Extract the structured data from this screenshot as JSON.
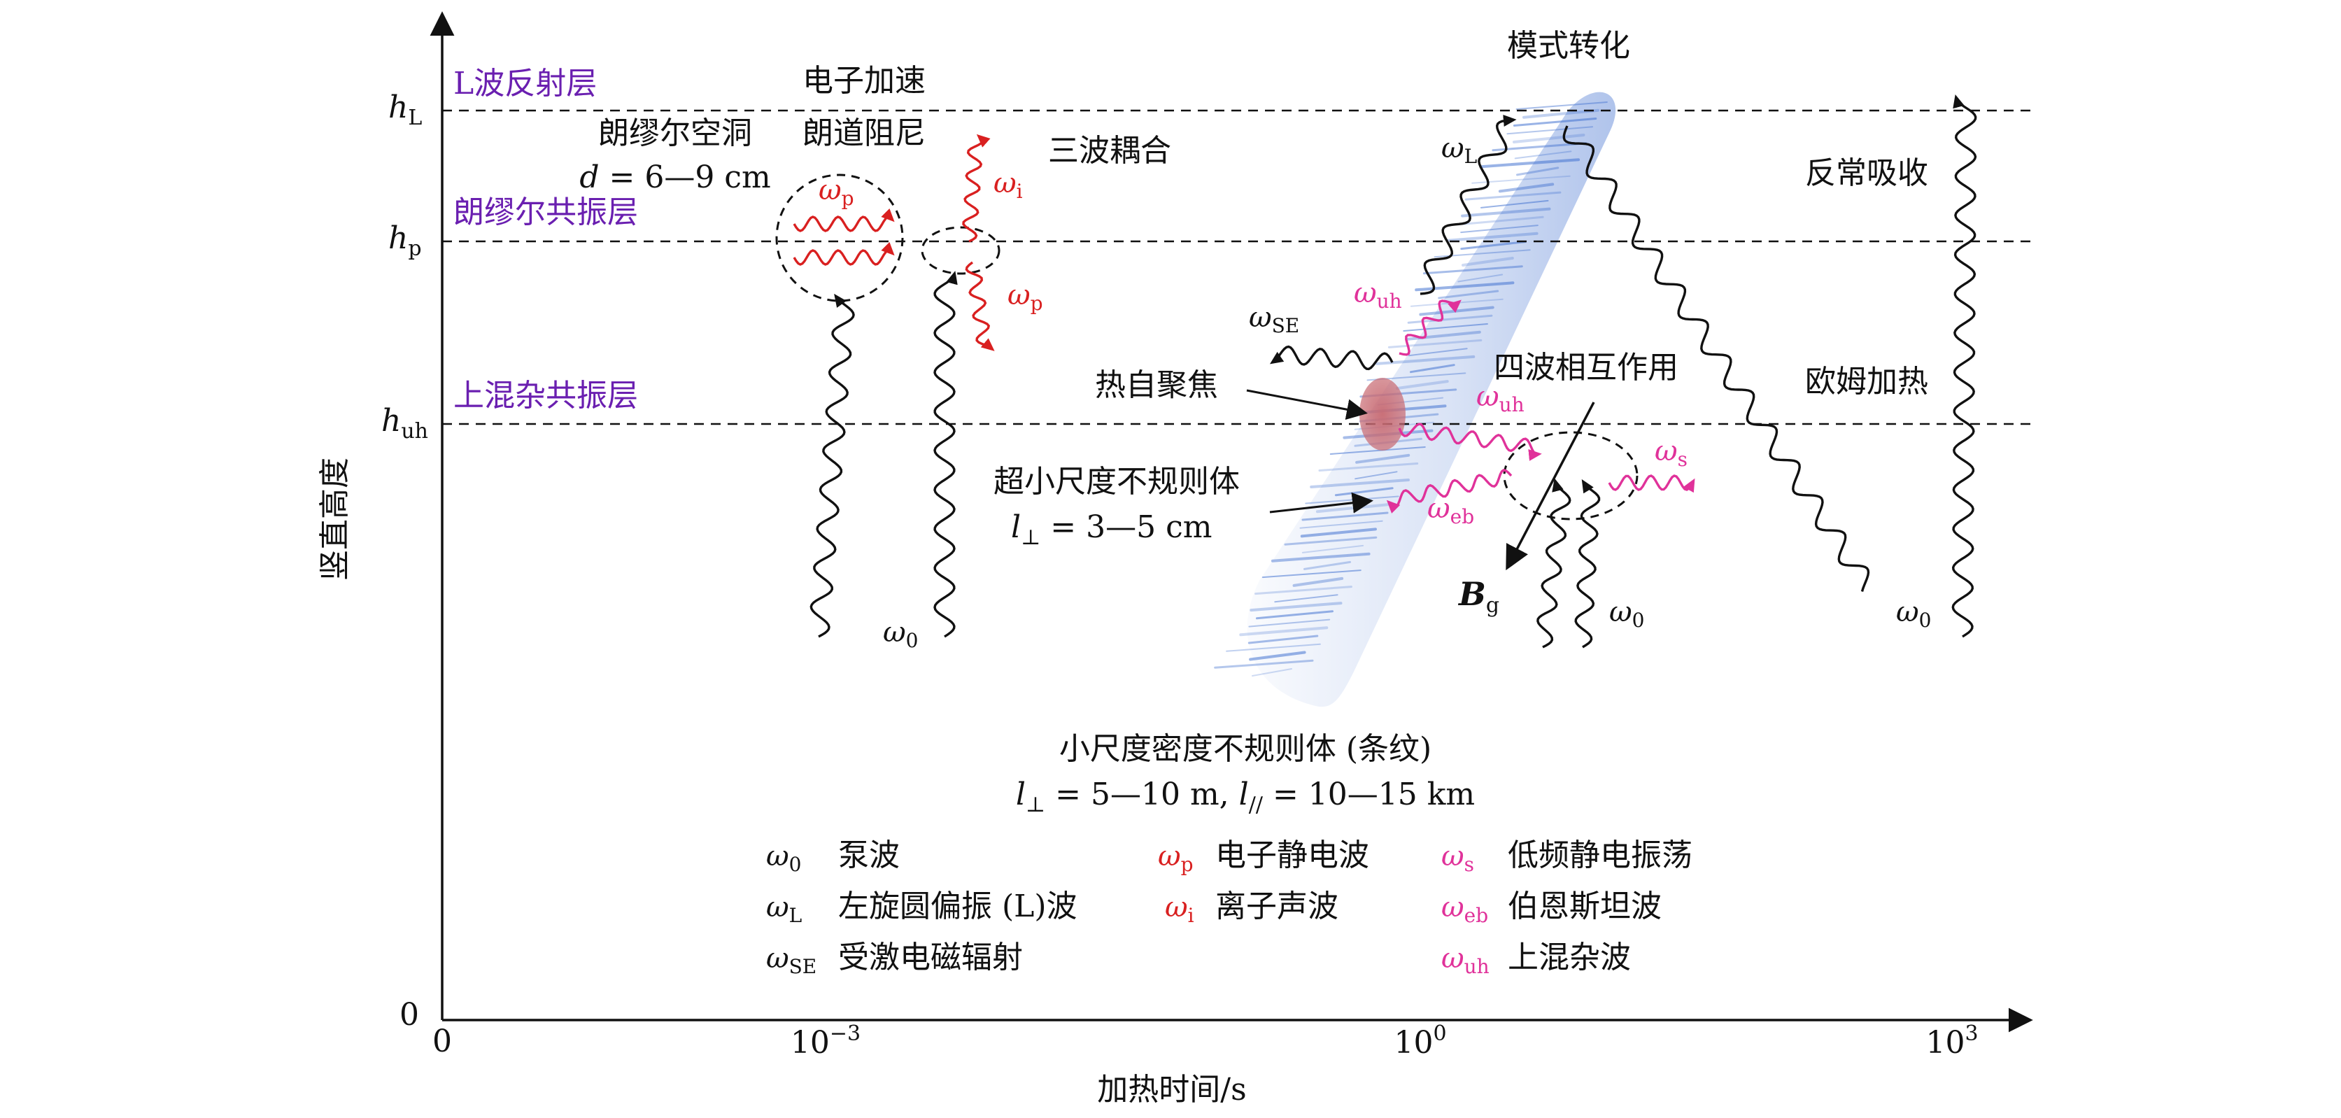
{
  "axes": {
    "y_title": "竖直高度",
    "x_title": "加热时间/s",
    "origin_y": "0",
    "origin_x": "0",
    "x_ticks": [
      {
        "base": "10",
        "exp": "−3"
      },
      {
        "base": "10",
        "exp": "0"
      },
      {
        "base": "10",
        "exp": "3"
      }
    ],
    "x_scale": "log",
    "y_ticks": [
      {
        "var": "h",
        "sub": "L"
      },
      {
        "var": "h",
        "sub": "p"
      },
      {
        "var": "h",
        "sub": "uh"
      }
    ]
  },
  "layers": {
    "l_reflect": "L波反射层",
    "langmuir_res": "朗缪尔共振层",
    "upper_hybrid": "上混杂共振层"
  },
  "annotations": {
    "langmuir_cavity": "朗缪尔空洞",
    "cavity_size": {
      "var": "d",
      "rest": " = 6—9 cm"
    },
    "electron_accel": "电子加速",
    "landau_damping": "朗道阻尼",
    "three_wave": "三波耦合",
    "mode_conversion": "模式转化",
    "anomalous_abs": "反常吸收",
    "ohmic_heating": "欧姆加热",
    "four_wave": "四波相互作用",
    "self_focusing": "热自聚焦",
    "ultra_small": "超小尺度不规则体",
    "ultra_small_size": {
      "var": "l",
      "sub": "⊥",
      "rest": " = 3—5 cm"
    },
    "small_scale": "小尺度密度不规则体 (条纹)",
    "small_scale_size": {
      "var1": "l",
      "sub1": "⊥",
      "rest1": " = 5—10 m, ",
      "var2": "l",
      "sub2": "//",
      "rest2": " = 10—15 km"
    },
    "geomag_field": {
      "var": "B",
      "sub": "g"
    }
  },
  "wave_labels": {
    "w0_a": {
      "sym": "ω",
      "sub": "0"
    },
    "w0_b": {
      "sym": "ω",
      "sub": "0"
    },
    "w0_c": {
      "sym": "ω",
      "sub": "0"
    },
    "wL": {
      "sym": "ω",
      "sub": "L"
    },
    "wp_cavity": {
      "sym": "ω",
      "sub": "p"
    },
    "wi": {
      "sym": "ω",
      "sub": "i"
    },
    "wp": {
      "sym": "ω",
      "sub": "p"
    },
    "wSE": {
      "sym": "ω",
      "sub": "SE"
    },
    "wuh_a": {
      "sym": "ω",
      "sub": "uh"
    },
    "wuh_b": {
      "sym": "ω",
      "sub": "uh"
    },
    "ws": {
      "sym": "ω",
      "sub": "s"
    },
    "web": {
      "sym": "ω",
      "sub": "eb"
    }
  },
  "legend": [
    {
      "sym": "ω",
      "sub": "0",
      "text": "泵波",
      "color": "#111111"
    },
    {
      "sym": "ω",
      "sub": "L",
      "text": "左旋圆偏振 (L)波",
      "color": "#111111"
    },
    {
      "sym": "ω",
      "sub": "SE",
      "text": "受激电磁辐射",
      "color": "#111111"
    },
    {
      "sym": "ω",
      "sub": "p",
      "text": "电子静电波",
      "color": "#d92020"
    },
    {
      "sym": "ω",
      "sub": "i",
      "text": "离子声波",
      "color": "#d92020"
    },
    {
      "sym": "ω",
      "sub": "s",
      "text": "低频静电振荡",
      "color": "#e0329a"
    },
    {
      "sym": "ω",
      "sub": "eb",
      "text": "伯恩斯坦波",
      "color": "#e0329a"
    },
    {
      "sym": "ω",
      "sub": "uh",
      "text": "上混杂波",
      "color": "#e0329a"
    }
  ],
  "colors": {
    "black": "#111111",
    "red": "#d92020",
    "pink": "#e0329a",
    "purple": "#6a1fb0",
    "striation_blue": "#3f6fcf",
    "focus_blob": "#c86a72"
  },
  "icons": {
    "axis_arrow": "arrow-icon",
    "striation": "striation-band-icon",
    "self_focus": "density-blob-icon"
  }
}
